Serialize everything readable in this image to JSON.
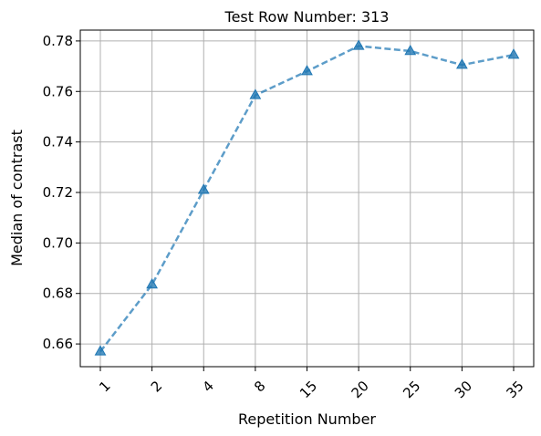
{
  "chart_data": {
    "type": "line",
    "title": "Test Row Number: 313",
    "xlabel": "Repetition Number",
    "ylabel": "Median of contrast",
    "categories": [
      "1",
      "2",
      "4",
      "8",
      "15",
      "20",
      "25",
      "30",
      "35"
    ],
    "series": [
      {
        "values": [
          0.657,
          0.6835,
          0.721,
          0.7585,
          0.768,
          0.778,
          0.776,
          0.7705,
          0.7745
        ],
        "color": "#1f77b4",
        "line_style": "dashed",
        "marker": "triangle-up"
      }
    ],
    "ylim": [
      0.651,
      0.7843
    ],
    "yticks": [
      "0.66",
      "0.68",
      "0.70",
      "0.72",
      "0.74",
      "0.76",
      "0.78"
    ],
    "ytick_values": [
      0.66,
      0.68,
      0.7,
      0.72,
      0.74,
      0.76,
      0.78
    ],
    "grid": true,
    "xtick_rotation": 45
  }
}
